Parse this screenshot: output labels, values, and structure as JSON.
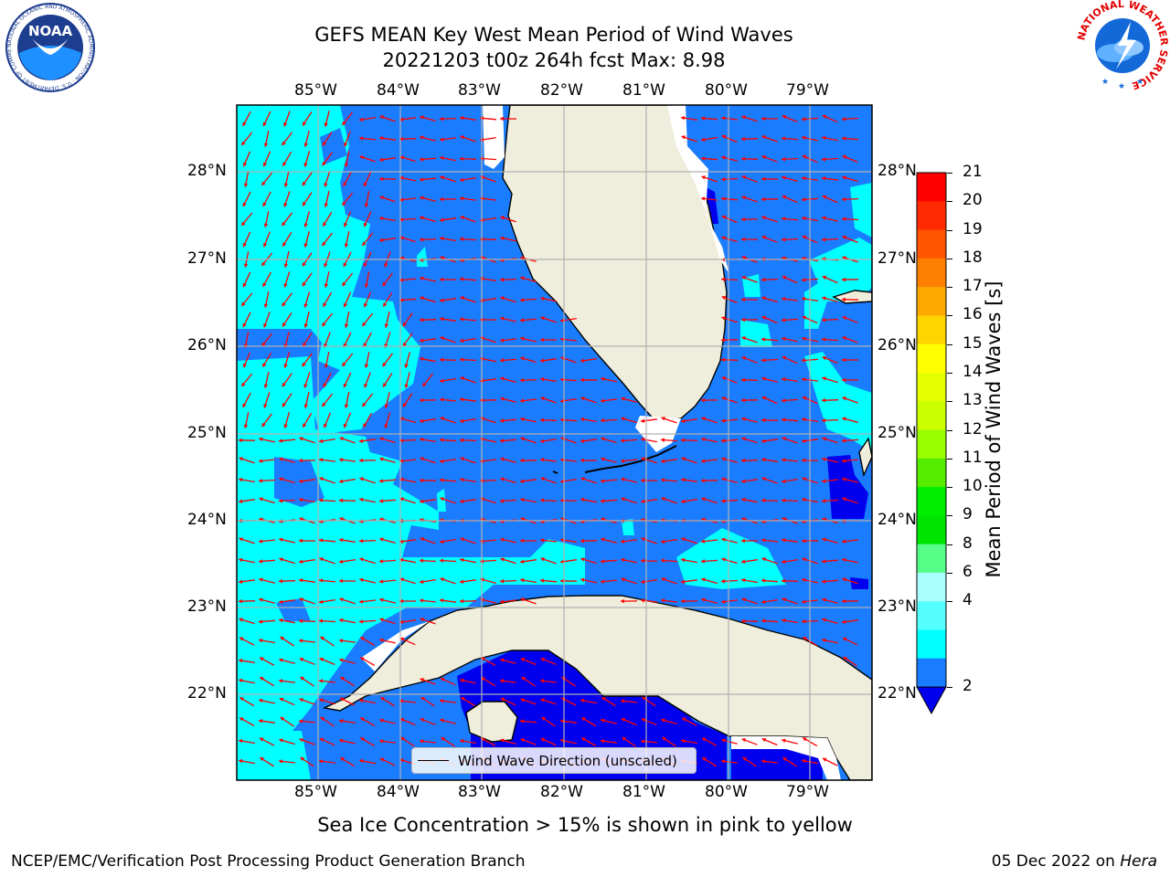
{
  "title": {
    "line1": "GEFS MEAN Key West Mean Period of Wind Waves",
    "line2": "20221203 t00z 264h fcst   Max: 8.98"
  },
  "logos": {
    "noaa_text": "NOAA",
    "noaa_ring": "NATIONAL OCEANIC AND ATMOSPHERIC ADMINISTRATION · U.S. DEPARTMENT OF COMMERCE",
    "nws_ring": "NATIONAL WEATHER SERVICE"
  },
  "map": {
    "lon_labels": [
      "85°W",
      "84°W",
      "83°W",
      "82°W",
      "81°W",
      "80°W",
      "79°W"
    ],
    "lat_labels": [
      "28°N",
      "27°N",
      "26°N",
      "25°N",
      "24°N",
      "23°N",
      "22°N"
    ],
    "legend_label": "Wind Wave Direction (unscaled)",
    "colors": {
      "ocean_2_4": "#1a7dff",
      "ocean_4_6": "#00ffff",
      "ocean_lt_2": "#0000ee",
      "land": "#efeedc",
      "arrows": "#ff0000",
      "grid": "#b0b0b0"
    }
  },
  "colorbar": {
    "label": "Mean Period of Wind Waves [s]",
    "ticks": [
      "21",
      "20",
      "19",
      "18",
      "17",
      "16",
      "15",
      "14",
      "13",
      "12",
      "11",
      "10",
      "9",
      "8",
      "6",
      "4",
      "2"
    ],
    "colors": [
      "#ff0000",
      "#ff2a00",
      "#ff5500",
      "#ff8000",
      "#ffaa00",
      "#ffd500",
      "#ffff00",
      "#e6ff00",
      "#ccff00",
      "#99ff00",
      "#55ee00",
      "#00ee00",
      "#00e500",
      "#55ff88",
      "#aaffff",
      "#55ffff",
      "#00ffff",
      "#1a7dff"
    ],
    "extend_color": "#0000ee"
  },
  "footer": {
    "note": "Sea Ice Concentration > 15% is shown in pink to yellow",
    "credit": "NCEP/EMC/Verification Post Processing Product Generation Branch",
    "date": "05 Dec 2022 on ",
    "machine": "Hera"
  }
}
